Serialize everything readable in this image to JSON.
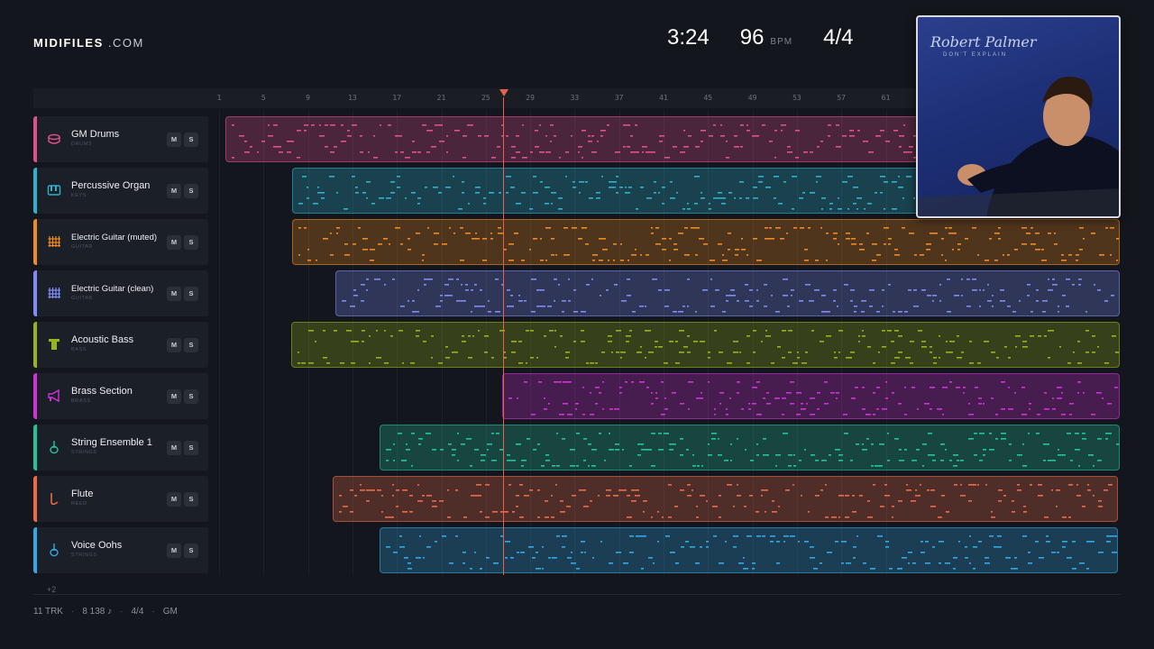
{
  "brand": {
    "name": "MIDIFILES",
    "suffix": " .COM"
  },
  "stats": {
    "time": "3:24",
    "bpm": "96",
    "bpm_label": "BPM",
    "signature": "4/4"
  },
  "album": {
    "artist": "Robert Palmer",
    "subtitle": "DON'T EXPLAIN"
  },
  "ruler": [
    "1",
    "5",
    "9",
    "13",
    "17",
    "21",
    "25",
    "29",
    "33",
    "37",
    "41",
    "45",
    "49",
    "53",
    "57",
    "61"
  ],
  "tracks": [
    {
      "name": "GM Drums",
      "category": "DRUMS",
      "color": "#e0508a",
      "icon": "drum-icon"
    },
    {
      "name": "Percussive Organ",
      "category": "KEYS",
      "color": "#2bb2d1",
      "icon": "piano-icon"
    },
    {
      "name": "Electric Guitar (muted)",
      "category": "GUITAR",
      "color": "#ef8a22",
      "icon": "guitar-fret-icon"
    },
    {
      "name": "Electric Guitar (clean)",
      "category": "GUITAR",
      "color": "#7f8cf5",
      "icon": "guitar-fret-icon"
    },
    {
      "name": "Acoustic Bass",
      "category": "BASS",
      "color": "#95b51a",
      "icon": "bass-icon"
    },
    {
      "name": "Brass Section",
      "category": "BRASS",
      "color": "#d231d8",
      "icon": "horn-icon"
    },
    {
      "name": "String Ensemble 1",
      "category": "STRINGS",
      "color": "#23c49a",
      "icon": "violin-icon"
    },
    {
      "name": "Flute",
      "category": "REED",
      "color": "#ee6a47",
      "icon": "flute-icon"
    },
    {
      "name": "Voice Oohs",
      "category": "STRINGS",
      "color": "#31a9e6",
      "icon": "voice-icon"
    }
  ],
  "buttons": {
    "mute": "M",
    "solo": "S"
  },
  "more_tracks": "+2",
  "footer": {
    "tracks": "11 TRK",
    "notes": "8 138 ♪",
    "signature": "4/4",
    "standard": "GM"
  }
}
